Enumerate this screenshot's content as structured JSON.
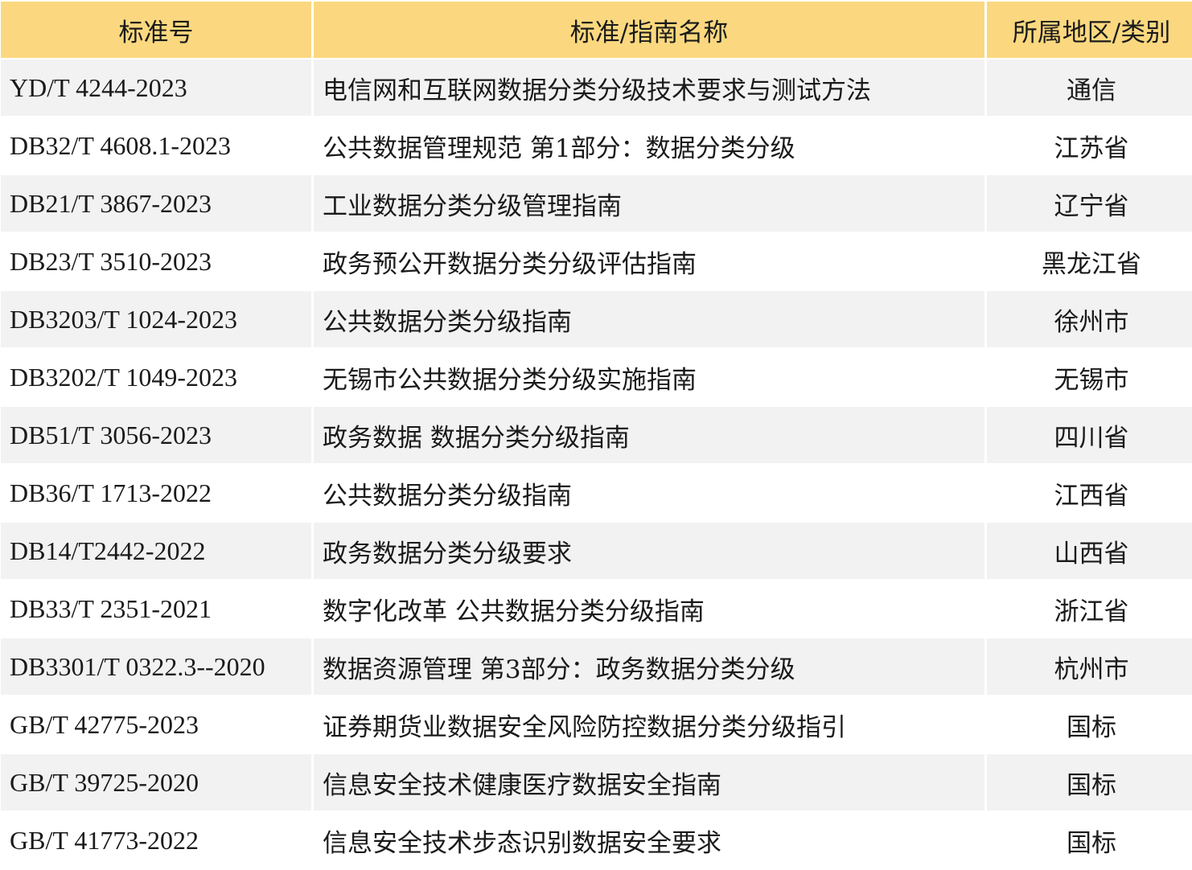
{
  "header": [
    "标准号",
    "标准/指南名称",
    "所属地区/类别"
  ],
  "colors": {
    "header_bg": "#fbd87f",
    "alt_row_bg": "#f2f2f2"
  },
  "rows": [
    [
      "YD/T 4244-2023",
      "电信网和互联网数据分类分级技术要求与测试方法",
      "通信"
    ],
    [
      "DB32/T 4608.1-2023",
      "公共数据管理规范 第1部分：数据分类分级",
      "江苏省"
    ],
    [
      "DB21/T 3867-2023",
      "工业数据分类分级管理指南",
      "辽宁省"
    ],
    [
      "DB23/T 3510-2023",
      "政务预公开数据分类分级评估指南",
      "黑龙江省"
    ],
    [
      "DB3203/T 1024-2023",
      "公共数据分类分级指南",
      "徐州市"
    ],
    [
      "DB3202/T 1049-2023",
      "无锡市公共数据分类分级实施指南",
      "无锡市"
    ],
    [
      "DB51/T 3056-2023",
      "政务数据 数据分类分级指南",
      "四川省"
    ],
    [
      "DB36/T 1713-2022",
      "公共数据分类分级指南",
      "江西省"
    ],
    [
      "DB14/T2442-2022",
      "政务数据分类分级要求",
      "山西省"
    ],
    [
      "DB33/T 2351-2021",
      "数字化改革 公共数据分类分级指南",
      "浙江省"
    ],
    [
      "DB3301/T 0322.3--2020",
      "数据资源管理 第3部分：政务数据分类分级",
      "杭州市"
    ],
    [
      "GB/T 42775-2023",
      "证券期货业数据安全风险防控数据分类分级指引",
      "国标"
    ],
    [
      "GB/T 39725-2020",
      "信息安全技术健康医疗数据安全指南",
      "国标"
    ],
    [
      "GB/T 41773-2022",
      "信息安全技术步态识别数据安全要求",
      "国标"
    ]
  ]
}
